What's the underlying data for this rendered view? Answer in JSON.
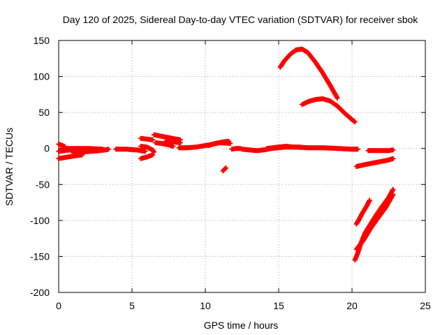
{
  "chart_data": {
    "type": "scatter",
    "title": "Day 120 of 2025, Sidereal Day-to-day VTEC variation (SDTVAR) for receiver sbok",
    "xlabel": "GPS time / hours",
    "ylabel": "SDTVAR / TECUs",
    "xlim": [
      0,
      25
    ],
    "ylim": [
      -200,
      150
    ],
    "x_ticks": [
      0,
      5,
      10,
      15,
      20,
      25
    ],
    "y_ticks": [
      -200,
      -150,
      -100,
      -50,
      0,
      50,
      100,
      150
    ],
    "grid": true,
    "marker": "+",
    "color": "#ff0000",
    "segments": [
      {
        "points": [
          [
            0.0,
            6.0
          ],
          [
            0.4,
            3.0
          ]
        ]
      },
      {
        "points": [
          [
            0.0,
            -14.0
          ],
          [
            0.6,
            -12.0
          ],
          [
            1.2,
            -10.0
          ],
          [
            1.6,
            -9.0
          ]
        ]
      },
      {
        "points": [
          [
            0.0,
            -4.0
          ],
          [
            0.8,
            -2.0
          ],
          [
            1.6,
            -1.0
          ],
          [
            2.4,
            -1.0
          ],
          [
            3.2,
            -2.0
          ],
          [
            3.4,
            -1.0
          ]
        ]
      },
      {
        "points": [
          [
            0.2,
            0.0
          ],
          [
            1.0,
            0.0
          ],
          [
            2.0,
            0.0
          ],
          [
            3.0,
            -1.0
          ]
        ]
      },
      {
        "points": [
          [
            1.0,
            -6.0
          ],
          [
            1.6,
            -5.0
          ],
          [
            2.2,
            -4.0
          ],
          [
            2.8,
            -3.0
          ],
          [
            3.2,
            -2.0
          ]
        ]
      },
      {
        "points": [
          [
            3.9,
            -1.0
          ],
          [
            4.6,
            -1.0
          ],
          [
            5.3,
            -2.0
          ],
          [
            5.9,
            -4.0
          ]
        ]
      },
      {
        "points": [
          [
            5.6,
            14.0
          ],
          [
            6.0,
            13.0
          ],
          [
            6.4,
            12.0
          ]
        ]
      },
      {
        "points": [
          [
            5.6,
            -14.0
          ],
          [
            6.0,
            -12.0
          ],
          [
            6.4,
            -9.0
          ]
        ]
      },
      {
        "points": [
          [
            5.6,
            3.0
          ],
          [
            6.0,
            2.0
          ],
          [
            6.4,
            -2.0
          ],
          [
            6.5,
            -5.0
          ]
        ]
      },
      {
        "points": [
          [
            6.5,
            19.0
          ],
          [
            7.0,
            17.0
          ],
          [
            7.5,
            15.0
          ],
          [
            8.0,
            13.0
          ],
          [
            8.3,
            12.0
          ]
        ]
      },
      {
        "points": [
          [
            6.6,
            8.0
          ],
          [
            7.0,
            7.0
          ],
          [
            7.5,
            5.0
          ],
          [
            7.8,
            3.0
          ]
        ]
      },
      {
        "points": [
          [
            7.3,
            10.0
          ],
          [
            7.8,
            9.0
          ],
          [
            8.3,
            8.0
          ]
        ]
      },
      {
        "points": [
          [
            8.2,
            1.0
          ],
          [
            8.8,
            1.0
          ],
          [
            9.4,
            2.0
          ],
          [
            10.0,
            4.0
          ],
          [
            10.5,
            6.0
          ],
          [
            11.0,
            8.0
          ],
          [
            11.7,
            7.0
          ]
        ]
      },
      {
        "points": [
          [
            10.2,
            4.0
          ],
          [
            10.7,
            7.0
          ],
          [
            11.2,
            9.0
          ],
          [
            11.6,
            10.0
          ]
        ]
      },
      {
        "points": [
          [
            11.2,
            -31.0
          ],
          [
            11.3,
            -29.0
          ],
          [
            11.4,
            -27.0
          ]
        ]
      },
      {
        "points": [
          [
            11.8,
            -1.0
          ],
          [
            12.1,
            0.0
          ],
          [
            12.4,
            0.0
          ]
        ]
      },
      {
        "points": [
          [
            12.5,
            -1.0
          ],
          [
            13.0,
            -2.0
          ],
          [
            13.5,
            -3.0
          ],
          [
            14.0,
            -2.0
          ],
          [
            14.5,
            0.0
          ],
          [
            15.0,
            1.0
          ],
          [
            15.5,
            2.0
          ],
          [
            16.0,
            2.0
          ],
          [
            17.0,
            1.0
          ],
          [
            18.0,
            1.0
          ],
          [
            19.0,
            0.0
          ],
          [
            20.0,
            -1.0
          ],
          [
            20.3,
            -1.0
          ]
        ]
      },
      {
        "points": [
          [
            14.2,
            0.0
          ],
          [
            14.6,
            1.0
          ],
          [
            15.0,
            2.0
          ],
          [
            15.5,
            3.0
          ],
          [
            16.0,
            2.0
          ],
          [
            16.5,
            2.0
          ]
        ]
      },
      {
        "points": [
          [
            15.1,
            113.0
          ],
          [
            15.4,
            122.0
          ],
          [
            15.8,
            131.0
          ],
          [
            16.2,
            137.0
          ],
          [
            16.6,
            138.0
          ],
          [
            17.0,
            133.0
          ],
          [
            17.5,
            120.0
          ],
          [
            18.0,
            105.0
          ],
          [
            18.5,
            88.0
          ],
          [
            19.0,
            70.0
          ]
        ]
      },
      {
        "points": [
          [
            16.6,
            61.0
          ],
          [
            17.0,
            65.0
          ],
          [
            17.5,
            68.0
          ],
          [
            18.0,
            69.0
          ],
          [
            18.5,
            66.0
          ],
          [
            19.0,
            59.0
          ],
          [
            19.5,
            49.0
          ],
          [
            20.0,
            40.0
          ],
          [
            20.2,
            37.0
          ]
        ]
      },
      {
        "points": [
          [
            20.0,
            -1.0
          ],
          [
            20.4,
            -1.0
          ]
        ]
      },
      {
        "points": [
          [
            20.3,
            -25.0
          ],
          [
            21.0,
            -22.0
          ],
          [
            21.5,
            -20.0
          ],
          [
            22.0,
            -18.0
          ],
          [
            22.5,
            -16.0
          ],
          [
            22.8,
            -14.0
          ]
        ]
      },
      {
        "points": [
          [
            21.1,
            -3.0
          ],
          [
            21.5,
            -3.0
          ],
          [
            22.0,
            -3.0
          ],
          [
            22.5,
            -3.0
          ],
          [
            22.8,
            -2.0
          ]
        ]
      },
      {
        "points": [
          [
            20.3,
            -105.0
          ],
          [
            20.5,
            -98.0
          ],
          [
            20.7,
            -90.0
          ],
          [
            21.0,
            -80.0
          ],
          [
            21.2,
            -72.0
          ]
        ]
      },
      {
        "points": [
          [
            20.3,
            -140.0
          ],
          [
            20.8,
            -127.0
          ],
          [
            21.3,
            -110.0
          ],
          [
            21.8,
            -96.0
          ],
          [
            22.3,
            -82.0
          ],
          [
            22.8,
            -64.0
          ]
        ]
      },
      {
        "points": [
          [
            20.2,
            -155.0
          ],
          [
            20.4,
            -145.0
          ],
          [
            20.6,
            -132.0
          ],
          [
            20.9,
            -117.0
          ],
          [
            21.2,
            -107.0
          ],
          [
            21.6,
            -94.0
          ],
          [
            22.0,
            -82.0
          ],
          [
            22.5,
            -68.0
          ],
          [
            22.8,
            -57.0
          ]
        ]
      }
    ]
  }
}
